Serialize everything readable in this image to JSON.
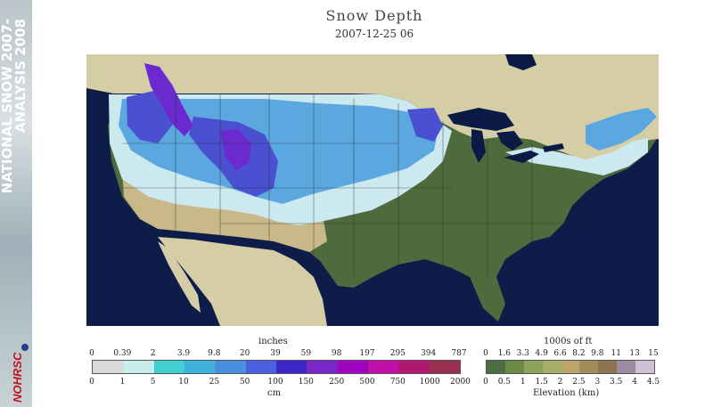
{
  "side_title": {
    "line1": "NATIONAL SNOW 2007-",
    "line2": "ANALYSIS 2008"
  },
  "logo_text": "NOHRSC",
  "title": "Snow Depth",
  "subtitle": "2007-12-25 06",
  "snow_scale": {
    "top_unit": "inches",
    "top_labels": [
      "0",
      "0.39",
      "2",
      "3.9",
      "9.8",
      "20",
      "39",
      "59",
      "98",
      "197",
      "295",
      "394",
      "787"
    ],
    "bottom_unit": "cm",
    "bottom_labels": [
      "0",
      "1",
      "5",
      "10",
      "25",
      "50",
      "100",
      "150",
      "250",
      "500",
      "750",
      "1000",
      "2000"
    ],
    "colors": [
      "#d9d9d9",
      "#c8ecec",
      "#40d0d0",
      "#3fb0d8",
      "#4a8ee0",
      "#4a60e0",
      "#3c28c8",
      "#7828c8",
      "#a000c0",
      "#c010a8",
      "#b01870",
      "#983050"
    ]
  },
  "elevation_scale": {
    "top_unit": "1000s of ft",
    "top_labels": [
      "0",
      "1.6",
      "3.3",
      "4.9",
      "6.6",
      "8.2",
      "9.8",
      "11",
      "13",
      "15"
    ],
    "bottom_labels": [
      "0",
      "0.5",
      "1",
      "1.5",
      "2",
      "2.5",
      "3",
      "3.5",
      "4",
      "4.5"
    ],
    "bottom_unit": "Elevation (km)",
    "colors": [
      "#4f6e3f",
      "#6b8a45",
      "#8ea15a",
      "#a8ad68",
      "#b9a66a",
      "#a58a5c",
      "#8d7350",
      "#9c8aa0",
      "#cdbfd8"
    ]
  },
  "map": {
    "colors": {
      "ocean": "#0d1c48",
      "land": "#d4cda6",
      "lowland": "#4d6b3c",
      "snow_light": "#cde9f0",
      "snow_mid": "#5ba8e0",
      "snow_deep": "#4a50d0",
      "snow_vdeep": "#6a2ad0",
      "lake": "#0a1a45"
    }
  }
}
